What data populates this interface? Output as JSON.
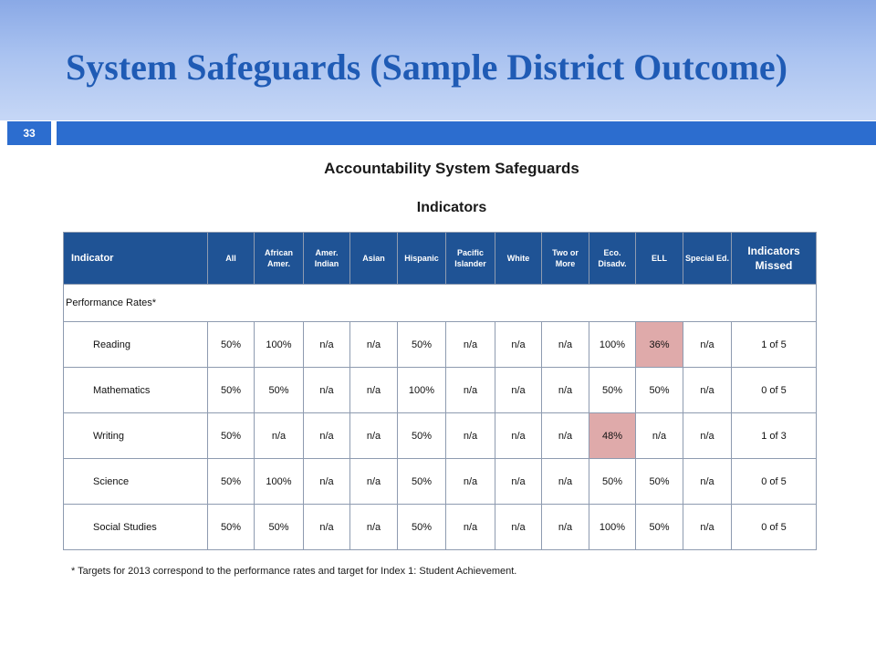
{
  "slide": {
    "title": "System Safeguards (Sample District Outcome)",
    "number": "33",
    "colors": {
      "title": "#1f5bb5",
      "accent_bar": "#2c6dcf",
      "table_header": "#1f5395",
      "flag": "#dfaaaa"
    }
  },
  "main": {
    "heading": "Accountability System Safeguards",
    "subheading": "Indicators"
  },
  "table": {
    "headers": [
      "Indicator",
      "All",
      "African Amer.",
      "Amer. Indian",
      "Asian",
      "Hispanic",
      "Pacific Islander",
      "White",
      "Two or More",
      "Eco. Disadv.",
      "ELL",
      "Special Ed.",
      "Indicators Missed"
    ],
    "section_label": "Performance Rates*",
    "rows": [
      {
        "name": "Reading",
        "cells": [
          "50%",
          "100%",
          "n/a",
          "n/a",
          "50%",
          "n/a",
          "n/a",
          "n/a",
          "100%",
          "36%",
          "n/a"
        ],
        "missed": "1 of 5",
        "flagged": [
          9
        ]
      },
      {
        "name": "Mathematics",
        "cells": [
          "50%",
          "50%",
          "n/a",
          "n/a",
          "100%",
          "n/a",
          "n/a",
          "n/a",
          "50%",
          "50%",
          "n/a"
        ],
        "missed": "0 of 5",
        "flagged": []
      },
      {
        "name": "Writing",
        "cells": [
          "50%",
          "n/a",
          "n/a",
          "n/a",
          "50%",
          "n/a",
          "n/a",
          "n/a",
          "48%",
          "n/a",
          "n/a"
        ],
        "missed": "1 of 3",
        "flagged": [
          8
        ]
      },
      {
        "name": "Science",
        "cells": [
          "50%",
          "100%",
          "n/a",
          "n/a",
          "50%",
          "n/a",
          "n/a",
          "n/a",
          "50%",
          "50%",
          "n/a"
        ],
        "missed": "0 of 5",
        "flagged": []
      },
      {
        "name": "Social Studies",
        "cells": [
          "50%",
          "50%",
          "n/a",
          "n/a",
          "50%",
          "n/a",
          "n/a",
          "n/a",
          "100%",
          "50%",
          "n/a"
        ],
        "missed": "0 of 5",
        "flagged": []
      }
    ]
  },
  "footnote": "* Targets for 2013 correspond to the performance rates and target for Index 1: Student Achievement."
}
